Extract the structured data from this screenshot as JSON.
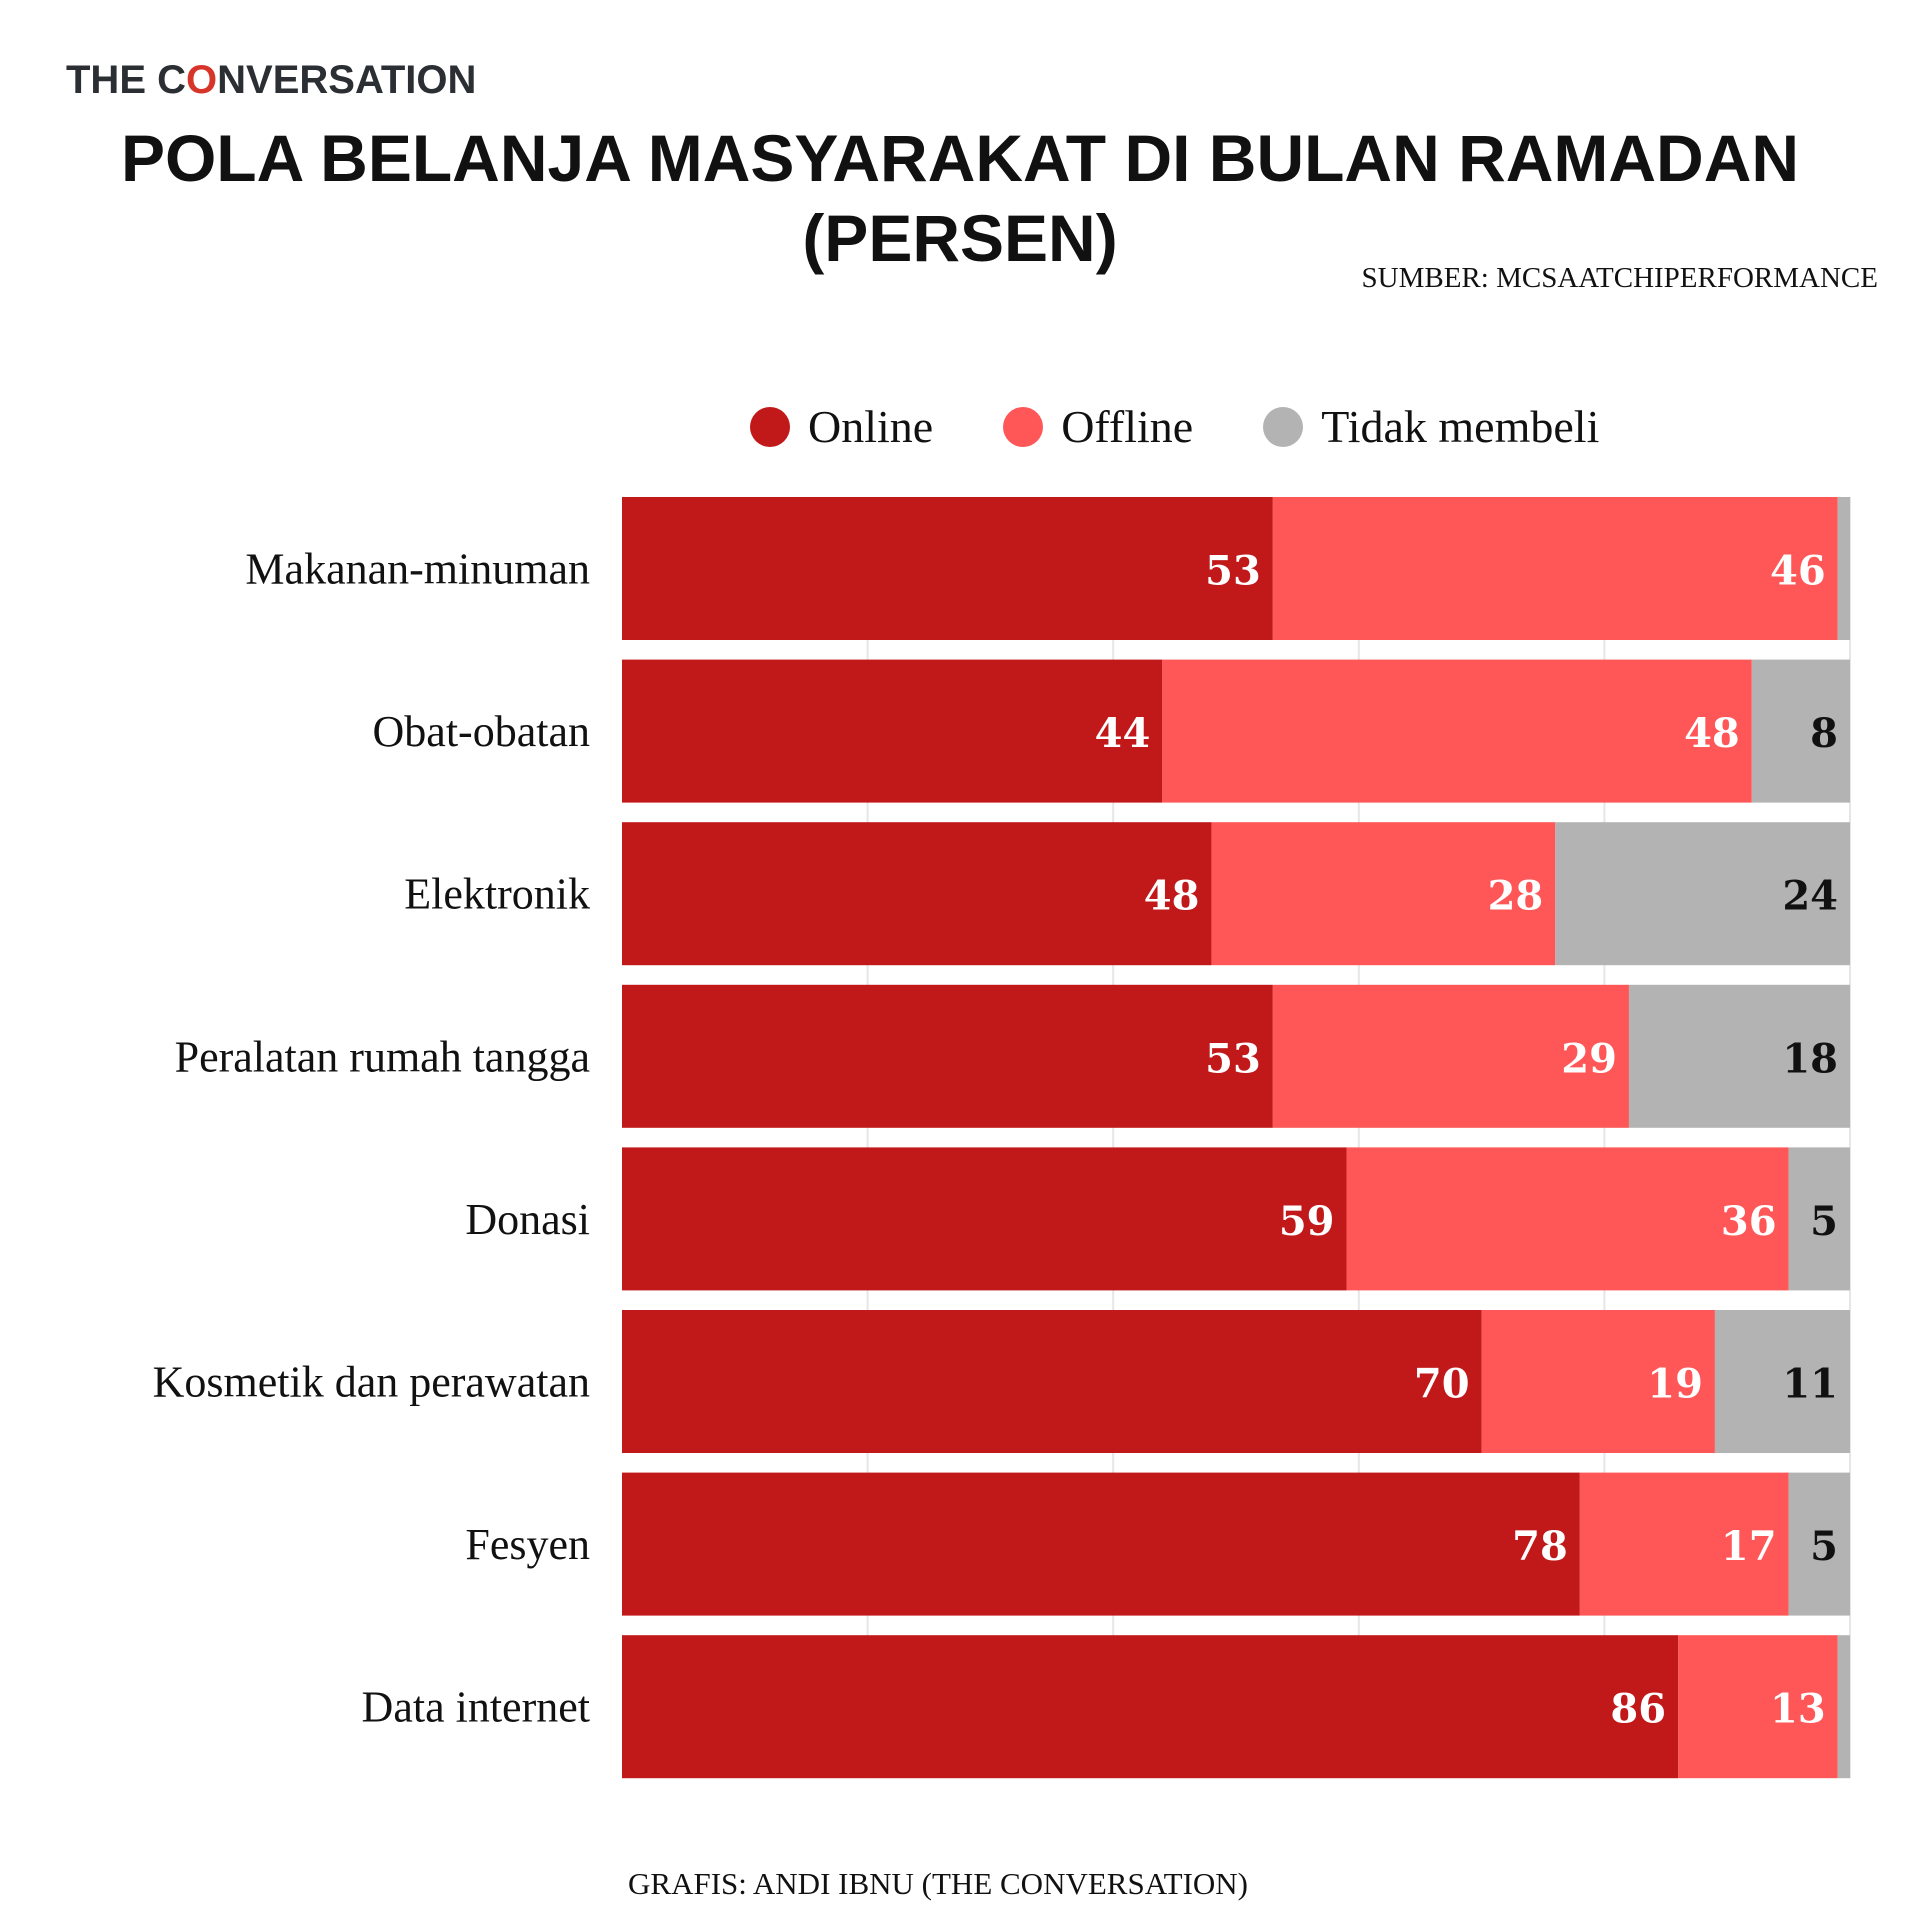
{
  "logo": {
    "text_before": "THE C",
    "text_o": "O",
    "text_after": "NVERSATION"
  },
  "title": "POLA BELANJA MASYARAKAT DI BULAN RAMADAN",
  "subtitle": "(PERSEN)",
  "source": "SUMBER: MCSAATCHIPERFORMANCE",
  "footer": "GRAFIS: ANDI IBNU (THE CONVERSATION)",
  "chart_data": {
    "type": "bar",
    "orientation": "horizontal",
    "stacked": true,
    "categories": [
      "Makanan-minuman",
      "Obat-obatan",
      "Elektronik",
      "Peralatan rumah tangga",
      "Donasi",
      "Kosmetik dan perawatan",
      "Fesyen",
      "Data internet"
    ],
    "series": [
      {
        "name": "Online",
        "color": "#c1181a",
        "values": [
          53,
          44,
          48,
          53,
          59,
          70,
          78,
          86
        ],
        "labels": [
          "53",
          "44",
          "48",
          "53",
          "59",
          "70",
          "78",
          "86"
        ]
      },
      {
        "name": "Offline",
        "color": "#ff5757",
        "values": [
          46,
          48,
          28,
          29,
          36,
          19,
          17,
          13
        ],
        "labels": [
          "46",
          "48",
          "28",
          "29",
          "36",
          "19",
          "17",
          "13"
        ]
      },
      {
        "name": "Tidak membeli",
        "color": "#b3b3b3",
        "values": [
          1,
          8,
          24,
          18,
          5,
          11,
          5,
          1
        ],
        "labels": [
          "",
          "8",
          "24",
          "18",
          "5",
          "11",
          "5",
          ""
        ]
      }
    ],
    "xlim": [
      0,
      100
    ],
    "grid": true,
    "legend": "top"
  }
}
